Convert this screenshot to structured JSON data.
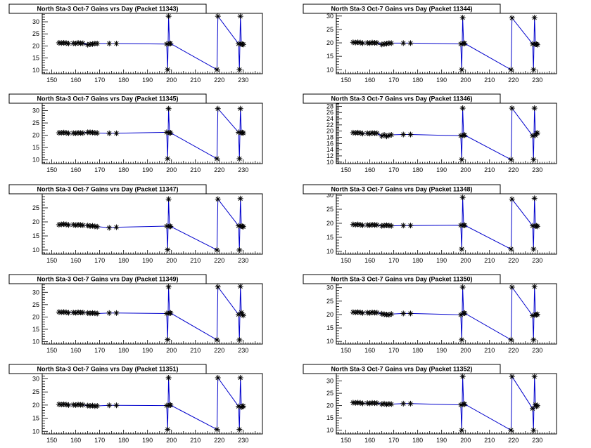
{
  "chart_data": [
    {
      "type": "line",
      "title": "North Sta-3 Oct-7 Gains vrs Day (Packet 11343)",
      "xlim": [
        146,
        238
      ],
      "ylim": [
        8.5,
        33.5
      ],
      "xticks": [
        150,
        160,
        170,
        180,
        190,
        200,
        210,
        220,
        230
      ],
      "yticks": [
        10,
        15,
        20,
        25,
        30
      ],
      "x": [
        153,
        154,
        155,
        156,
        157,
        159,
        160,
        161,
        162,
        163,
        165,
        166,
        167,
        168,
        169,
        174,
        177,
        198,
        198.4,
        198.8,
        199.2,
        199.6,
        219,
        219.4,
        228,
        228.4,
        228.8,
        229.2,
        229.6,
        230
      ],
      "y": [
        21.3,
        21.2,
        21.3,
        21.2,
        21,
        21.1,
        21,
        21.3,
        21.1,
        21.1,
        20.5,
        20.7,
        20.8,
        21,
        21,
        21,
        21,
        20.8,
        10.2,
        32.3,
        21,
        21,
        10.2,
        32.3,
        20.9,
        10.2,
        32.3,
        20.8,
        20.7,
        20.6
      ]
    },
    {
      "type": "line",
      "title": "North Sta-3 Oct-7 Gains vrs Day (Packet 11344)",
      "xlim": [
        146,
        238
      ],
      "ylim": [
        8.5,
        31
      ],
      "xticks": [
        150,
        160,
        170,
        180,
        190,
        200,
        210,
        220,
        230
      ],
      "yticks": [
        10,
        15,
        20,
        25,
        30
      ],
      "x": [
        153,
        154,
        155,
        156,
        157,
        159,
        160,
        161,
        162,
        163,
        165,
        166,
        167,
        168,
        169,
        174,
        177,
        198,
        198.4,
        198.8,
        199.2,
        199.6,
        219,
        219.4,
        228,
        228.4,
        228.8,
        229.2,
        229.6,
        230
      ],
      "y": [
        20.2,
        20.1,
        20.2,
        20.1,
        19.9,
        20,
        19.9,
        20.1,
        20,
        20,
        19.4,
        19.6,
        19.7,
        19.9,
        19.9,
        19.9,
        19.9,
        19.6,
        10,
        29.4,
        19.8,
        19.8,
        10,
        29.3,
        19.6,
        10,
        29.4,
        19.5,
        19.5,
        19.3
      ]
    },
    {
      "type": "line",
      "title": "North Sta-3 Oct-7 Gains vrs Day (Packet 11345)",
      "xlim": [
        146,
        238
      ],
      "ylim": [
        8.5,
        33
      ],
      "xticks": [
        150,
        160,
        170,
        180,
        190,
        200,
        210,
        220,
        230
      ],
      "yticks": [
        10,
        15,
        20,
        25,
        30
      ],
      "x": [
        153,
        154,
        155,
        156,
        157,
        159,
        160,
        161,
        162,
        163,
        165,
        166,
        167,
        168,
        169,
        174,
        177,
        198,
        198.4,
        198.8,
        199.2,
        199.6,
        219,
        219.4,
        228,
        228.4,
        228.8,
        229.2,
        229.6,
        230
      ],
      "y": [
        21,
        21,
        21.1,
        21,
        20.8,
        20.9,
        20.8,
        21,
        20.9,
        20.9,
        21.2,
        21.2,
        21.1,
        21,
        20.9,
        20.8,
        20.8,
        21.2,
        10.5,
        30.8,
        21,
        21,
        10.5,
        30.8,
        21.2,
        10.5,
        30.8,
        21,
        21.1,
        20.9
      ]
    },
    {
      "type": "line",
      "title": "North Sta-3 Oct-7 Gains vrs Day (Packet 11346)",
      "xlim": [
        146,
        238
      ],
      "ylim": [
        9.5,
        29
      ],
      "xticks": [
        150,
        160,
        170,
        180,
        190,
        200,
        210,
        220,
        230
      ],
      "yticks": [
        10,
        12,
        14,
        16,
        18,
        20,
        22,
        24,
        26,
        28
      ],
      "x": [
        153,
        154,
        155,
        156,
        157,
        159,
        160,
        161,
        162,
        163,
        165,
        166,
        167,
        168,
        169,
        174,
        177,
        198,
        198.4,
        198.8,
        199.2,
        199.6,
        219,
        219.4,
        228,
        228.4,
        228.8,
        229.2,
        229.6,
        230
      ],
      "y": [
        19.5,
        19.4,
        19.5,
        19.4,
        19.2,
        19.3,
        19.2,
        19.4,
        19.3,
        19.3,
        18.4,
        18.8,
        18.3,
        18.6,
        18.8,
        18.9,
        18.9,
        18.5,
        10.8,
        27.4,
        18.7,
        18.7,
        10.8,
        27.4,
        18.5,
        10.8,
        27.4,
        18.6,
        19.2,
        19.4
      ]
    },
    {
      "type": "line",
      "title": "North Sta-3 Oct-7 Gains vrs Day (Packet 11347)",
      "xlim": [
        146,
        238
      ],
      "ylim": [
        8.5,
        30
      ],
      "xticks": [
        150,
        160,
        170,
        180,
        190,
        200,
        210,
        220,
        230
      ],
      "yticks": [
        10,
        15,
        20,
        25
      ],
      "x": [
        153,
        154,
        155,
        156,
        157,
        159,
        160,
        161,
        162,
        163,
        165,
        166,
        167,
        168,
        169,
        174,
        177,
        198,
        198.4,
        198.8,
        199.2,
        199.6,
        219,
        219.4,
        228,
        228.4,
        228.8,
        229.2,
        229.6,
        230
      ],
      "y": [
        19,
        19.1,
        19.2,
        19.1,
        18.9,
        19,
        18.8,
        19,
        18.9,
        18.8,
        18.7,
        18.5,
        18.6,
        18.4,
        18.3,
        17.9,
        18.1,
        18.5,
        10.1,
        28.1,
        18.4,
        18.4,
        10,
        28.1,
        18.6,
        10,
        28.3,
        18.5,
        18.4,
        18.3
      ]
    },
    {
      "type": "line",
      "title": "North Sta-3 Oct-7 Gains vrs Day (Packet 11348)",
      "xlim": [
        146,
        238
      ],
      "ylim": [
        9,
        30.5
      ],
      "xticks": [
        150,
        160,
        170,
        180,
        190,
        200,
        210,
        220,
        230
      ],
      "yticks": [
        10,
        15,
        20,
        25,
        30
      ],
      "x": [
        153,
        154,
        155,
        156,
        157,
        159,
        160,
        161,
        162,
        163,
        165,
        166,
        167,
        168,
        169,
        174,
        177,
        198,
        198.4,
        198.8,
        199.2,
        199.6,
        219,
        219.4,
        228,
        228.4,
        228.8,
        229.2,
        229.6,
        230
      ],
      "y": [
        19.6,
        19.5,
        19.6,
        19.5,
        19.3,
        19.4,
        19.3,
        19.5,
        19.4,
        19.4,
        19.1,
        19.2,
        19.3,
        19.2,
        19.1,
        19.2,
        19.2,
        19.3,
        10.8,
        29.2,
        19.3,
        19.3,
        10.8,
        28.6,
        19.1,
        10.8,
        28.9,
        19,
        19.1,
        18.9
      ]
    },
    {
      "type": "line",
      "title": "North Sta-3 Oct-7 Gains vrs Day (Packet 11349)",
      "xlim": [
        146,
        238
      ],
      "ylim": [
        9,
        33.5
      ],
      "xticks": [
        150,
        160,
        170,
        180,
        190,
        200,
        210,
        220,
        230
      ],
      "yticks": [
        10,
        15,
        20,
        25,
        30
      ],
      "x": [
        153,
        154,
        155,
        156,
        157,
        159,
        160,
        161,
        162,
        163,
        165,
        166,
        167,
        168,
        169,
        174,
        177,
        198,
        198.4,
        198.8,
        199.2,
        199.6,
        219,
        219.4,
        228,
        228.4,
        228.8,
        229.2,
        229.6,
        230
      ],
      "y": [
        22,
        21.9,
        22,
        21.9,
        21.7,
        21.8,
        21.7,
        21.9,
        21.8,
        21.8,
        21.6,
        21.5,
        21.6,
        21.5,
        21.4,
        21.6,
        21.6,
        21.4,
        10.8,
        32.2,
        21.6,
        21.6,
        10.7,
        32.2,
        21,
        10.7,
        32.4,
        21.8,
        21,
        20.6
      ]
    },
    {
      "type": "line",
      "title": "North Sta-3 Oct-7 Gains vrs Day (Packet 11350)",
      "xlim": [
        146,
        238
      ],
      "ylim": [
        9,
        31.5
      ],
      "xticks": [
        150,
        160,
        170,
        180,
        190,
        200,
        210,
        220,
        230
      ],
      "yticks": [
        10,
        15,
        20,
        25,
        30
      ],
      "x": [
        153,
        154,
        155,
        156,
        157,
        159,
        160,
        161,
        162,
        163,
        165,
        166,
        167,
        168,
        169,
        174,
        177,
        198,
        198.4,
        198.8,
        199.2,
        199.6,
        219,
        219.4,
        228,
        228.4,
        228.8,
        229.2,
        229.6,
        230
      ],
      "y": [
        20.9,
        20.8,
        20.9,
        20.8,
        20.6,
        20.7,
        20.6,
        20.8,
        20.7,
        20.7,
        20.3,
        20.1,
        20,
        19.9,
        20.2,
        20.4,
        20.4,
        19.9,
        10.6,
        30.2,
        20.5,
        20.5,
        10.6,
        30.2,
        19.6,
        10.6,
        30.4,
        20,
        19.9,
        20.1
      ]
    },
    {
      "type": "line",
      "title": "North Sta-3 Oct-7 Gains vrs Day (Packet 11351)",
      "xlim": [
        146,
        238
      ],
      "ylim": [
        9,
        32
      ],
      "xticks": [
        150,
        160,
        170,
        180,
        190,
        200,
        210,
        220,
        230
      ],
      "yticks": [
        10,
        15,
        20,
        25,
        30
      ],
      "x": [
        153,
        154,
        155,
        156,
        157,
        159,
        160,
        161,
        162,
        163,
        165,
        166,
        167,
        168,
        169,
        174,
        177,
        198,
        198.4,
        198.8,
        199.2,
        199.6,
        219,
        219.4,
        228,
        228.4,
        228.8,
        229.2,
        229.6,
        230
      ],
      "y": [
        20.3,
        20.2,
        20.3,
        20.2,
        20,
        20.1,
        20,
        20.2,
        20.1,
        20.1,
        19.8,
        19.7,
        19.8,
        19.6,
        19.7,
        19.9,
        19.9,
        19.8,
        10.7,
        30.4,
        20,
        20,
        10.7,
        30.4,
        19.5,
        10.7,
        30.4,
        19.2,
        19.5,
        19.6
      ]
    },
    {
      "type": "line",
      "title": "North Sta-3 Oct-7 Gains vrs Day (Packet 11352)",
      "xlim": [
        146,
        238
      ],
      "ylim": [
        8.5,
        33
      ],
      "xticks": [
        150,
        160,
        170,
        180,
        190,
        200,
        210,
        220,
        230
      ],
      "yticks": [
        10,
        15,
        20,
        25,
        30
      ],
      "x": [
        153,
        154,
        155,
        156,
        157,
        159,
        160,
        161,
        162,
        163,
        165,
        166,
        167,
        168,
        169,
        174,
        177,
        198,
        198.4,
        198.8,
        199.2,
        199.6,
        219,
        219.4,
        228,
        228.4,
        228.8,
        229.2,
        229.6,
        230
      ],
      "y": [
        21.2,
        21.1,
        21.2,
        21.1,
        20.9,
        21,
        20.9,
        21.1,
        21,
        21,
        20.6,
        20.8,
        20.5,
        20.7,
        20.6,
        20.8,
        20.8,
        20.3,
        10,
        31.8,
        20.6,
        20.6,
        10,
        31.8,
        18.8,
        10,
        31.8,
        20.4,
        19.7,
        20
      ]
    }
  ]
}
